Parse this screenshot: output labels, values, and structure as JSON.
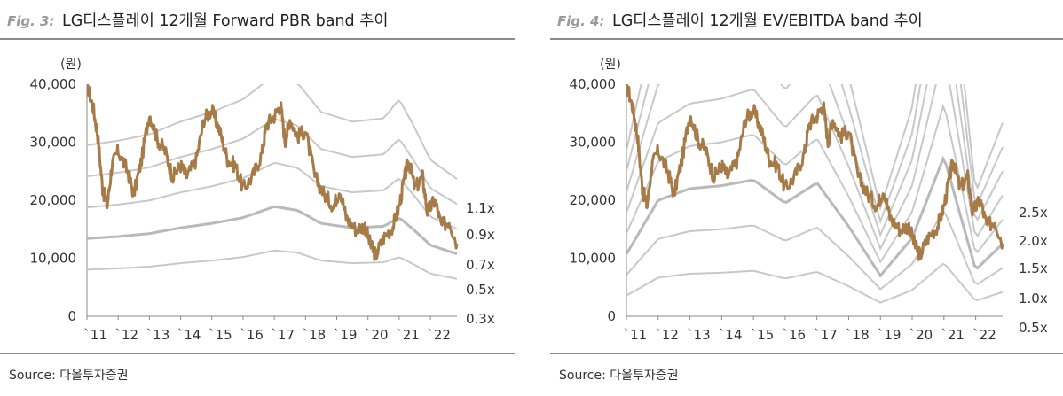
{
  "figures": [
    {
      "fig_label": "Fig. 3:",
      "title": "LG디스플레이 12개월 Forward PBR band 추이",
      "source": "Source: 다올투자증권",
      "chart_data": {
        "type": "line",
        "unit_label": "(원)",
        "x_ticks": [
          "`11",
          "`12",
          "`13",
          "`14",
          "`15",
          "`16",
          "`17",
          "`18",
          "`19",
          "`20",
          "`21",
          "`22"
        ],
        "xlim": [
          2011.0,
          2022.85
        ],
        "ylim": [
          0,
          40000
        ],
        "y_ticks": [
          "0",
          "10,000",
          "20,000",
          "30,000",
          "40,000"
        ],
        "y_tick_values": [
          0,
          10000,
          20000,
          30000,
          40000
        ],
        "band_labels": [
          "1.1x",
          "0.9x",
          "0.7x",
          "0.5x",
          "0.3x"
        ],
        "band_multiples": [
          1.1,
          0.9,
          0.7,
          0.5,
          0.3
        ],
        "bvps_x": [
          2011.0,
          2012.0,
          2013.0,
          2014.0,
          2015.0,
          2016.0,
          2017.0,
          2017.75,
          2018.5,
          2019.5,
          2020.5,
          2021.0,
          2021.5,
          2022.0,
          2022.85
        ],
        "bvps": [
          26800,
          27500,
          28500,
          30500,
          32000,
          34000,
          37800,
          36500,
          32000,
          30500,
          31000,
          34000,
          29500,
          24500,
          21500
        ],
        "price_anchors": [
          [
            2011.0,
            40000
          ],
          [
            2011.2,
            36000
          ],
          [
            2011.35,
            31000
          ],
          [
            2011.5,
            22000
          ],
          [
            2011.65,
            19000
          ],
          [
            2011.8,
            26000
          ],
          [
            2012.0,
            28500
          ],
          [
            2012.3,
            25000
          ],
          [
            2012.5,
            21000
          ],
          [
            2012.75,
            27000
          ],
          [
            2013.0,
            35000
          ],
          [
            2013.25,
            30500
          ],
          [
            2013.5,
            28500
          ],
          [
            2013.75,
            24000
          ],
          [
            2014.0,
            26000
          ],
          [
            2014.2,
            24000
          ],
          [
            2014.5,
            27000
          ],
          [
            2014.75,
            34000
          ],
          [
            2015.0,
            35500
          ],
          [
            2015.25,
            32000
          ],
          [
            2015.5,
            27000
          ],
          [
            2015.75,
            26000
          ],
          [
            2016.0,
            22000
          ],
          [
            2016.3,
            24000
          ],
          [
            2016.6,
            28000
          ],
          [
            2016.75,
            33000
          ],
          [
            2017.0,
            34500
          ],
          [
            2017.2,
            36500
          ],
          [
            2017.35,
            30000
          ],
          [
            2017.5,
            34000
          ],
          [
            2017.75,
            31000
          ],
          [
            2018.0,
            32000
          ],
          [
            2018.3,
            24000
          ],
          [
            2018.6,
            21000
          ],
          [
            2018.9,
            19000
          ],
          [
            2019.1,
            22000
          ],
          [
            2019.3,
            17000
          ],
          [
            2019.6,
            15000
          ],
          [
            2019.9,
            15500
          ],
          [
            2020.1,
            12000
          ],
          [
            2020.25,
            10500
          ],
          [
            2020.5,
            13500
          ],
          [
            2020.8,
            15500
          ],
          [
            2021.0,
            19000
          ],
          [
            2021.2,
            24500
          ],
          [
            2021.3,
            27000
          ],
          [
            2021.5,
            22000
          ],
          [
            2021.75,
            24000
          ],
          [
            2021.9,
            18000
          ],
          [
            2022.15,
            20000
          ],
          [
            2022.35,
            15500
          ],
          [
            2022.6,
            16500
          ],
          [
            2022.85,
            12500
          ]
        ],
        "colors": {
          "price": "#a67b47",
          "band": "#c8c8c8",
          "band_emph": "#b9b9b9"
        }
      }
    },
    {
      "fig_label": "Fig. 4:",
      "title": "LG디스플레이 12개월 EV/EBITDA band 추이",
      "source": "Source: 다올투자증권",
      "chart_data": {
        "type": "line",
        "unit_label": "(원)",
        "x_ticks": [
          "`11",
          "`12",
          "`13",
          "`14",
          "`15",
          "`16",
          "`17",
          "`18",
          "`19",
          "`20",
          "`21",
          "`22"
        ],
        "xlim": [
          2011.0,
          2022.85
        ],
        "ylim": [
          0,
          40000
        ],
        "y_ticks": [
          "0",
          "10,000",
          "20,000",
          "30,000",
          "40,000"
        ],
        "y_tick_values": [
          0,
          10000,
          20000,
          30000,
          40000
        ],
        "band_labels": [
          "2.5x",
          "2.0x",
          "1.5x",
          "1.0x",
          "0.5x"
        ],
        "band_multiples": [
          2.5,
          2.0,
          1.5,
          1.0,
          0.5
        ],
        "extra_multiples": [
          3.0,
          3.5,
          4.0
        ],
        "band_anchor_x": [
          2011.0,
          2012.0,
          2013.0,
          2014.0,
          2015.0,
          2016.0,
          2017.0,
          2018.0,
          2019.0,
          2020.0,
          2021.0,
          2022.0,
          2022.85
        ],
        "band_anchor_15x": [
          10700,
          20000,
          22000,
          22500,
          23500,
          19500,
          23000,
          15500,
          7000,
          13500,
          27500,
          8000,
          12500
        ],
        "price_anchors": [
          [
            2011.0,
            40000
          ],
          [
            2011.2,
            36000
          ],
          [
            2011.35,
            31000
          ],
          [
            2011.5,
            22000
          ],
          [
            2011.65,
            19000
          ],
          [
            2011.8,
            26000
          ],
          [
            2012.0,
            28500
          ],
          [
            2012.3,
            25000
          ],
          [
            2012.5,
            21000
          ],
          [
            2012.75,
            27000
          ],
          [
            2013.0,
            35000
          ],
          [
            2013.25,
            30500
          ],
          [
            2013.5,
            28500
          ],
          [
            2013.75,
            24000
          ],
          [
            2014.0,
            26000
          ],
          [
            2014.2,
            24000
          ],
          [
            2014.5,
            27000
          ],
          [
            2014.75,
            34000
          ],
          [
            2015.0,
            35500
          ],
          [
            2015.25,
            32000
          ],
          [
            2015.5,
            27000
          ],
          [
            2015.75,
            26000
          ],
          [
            2016.0,
            22000
          ],
          [
            2016.3,
            24000
          ],
          [
            2016.6,
            28000
          ],
          [
            2016.75,
            33000
          ],
          [
            2017.0,
            34500
          ],
          [
            2017.2,
            36500
          ],
          [
            2017.35,
            30000
          ],
          [
            2017.5,
            34000
          ],
          [
            2017.75,
            31000
          ],
          [
            2018.0,
            32000
          ],
          [
            2018.3,
            24000
          ],
          [
            2018.6,
            21000
          ],
          [
            2018.9,
            19000
          ],
          [
            2019.1,
            22000
          ],
          [
            2019.3,
            17000
          ],
          [
            2019.6,
            15000
          ],
          [
            2019.9,
            15500
          ],
          [
            2020.1,
            12000
          ],
          [
            2020.25,
            10500
          ],
          [
            2020.5,
            13500
          ],
          [
            2020.8,
            15500
          ],
          [
            2021.0,
            19000
          ],
          [
            2021.2,
            24500
          ],
          [
            2021.3,
            27000
          ],
          [
            2021.5,
            22000
          ],
          [
            2021.75,
            24000
          ],
          [
            2021.9,
            18000
          ],
          [
            2022.15,
            20000
          ],
          [
            2022.35,
            15500
          ],
          [
            2022.6,
            16500
          ],
          [
            2022.85,
            12500
          ]
        ],
        "colors": {
          "price": "#a67b47",
          "band": "#c8c8c8",
          "band_emph": "#b9b9b9"
        }
      }
    }
  ]
}
